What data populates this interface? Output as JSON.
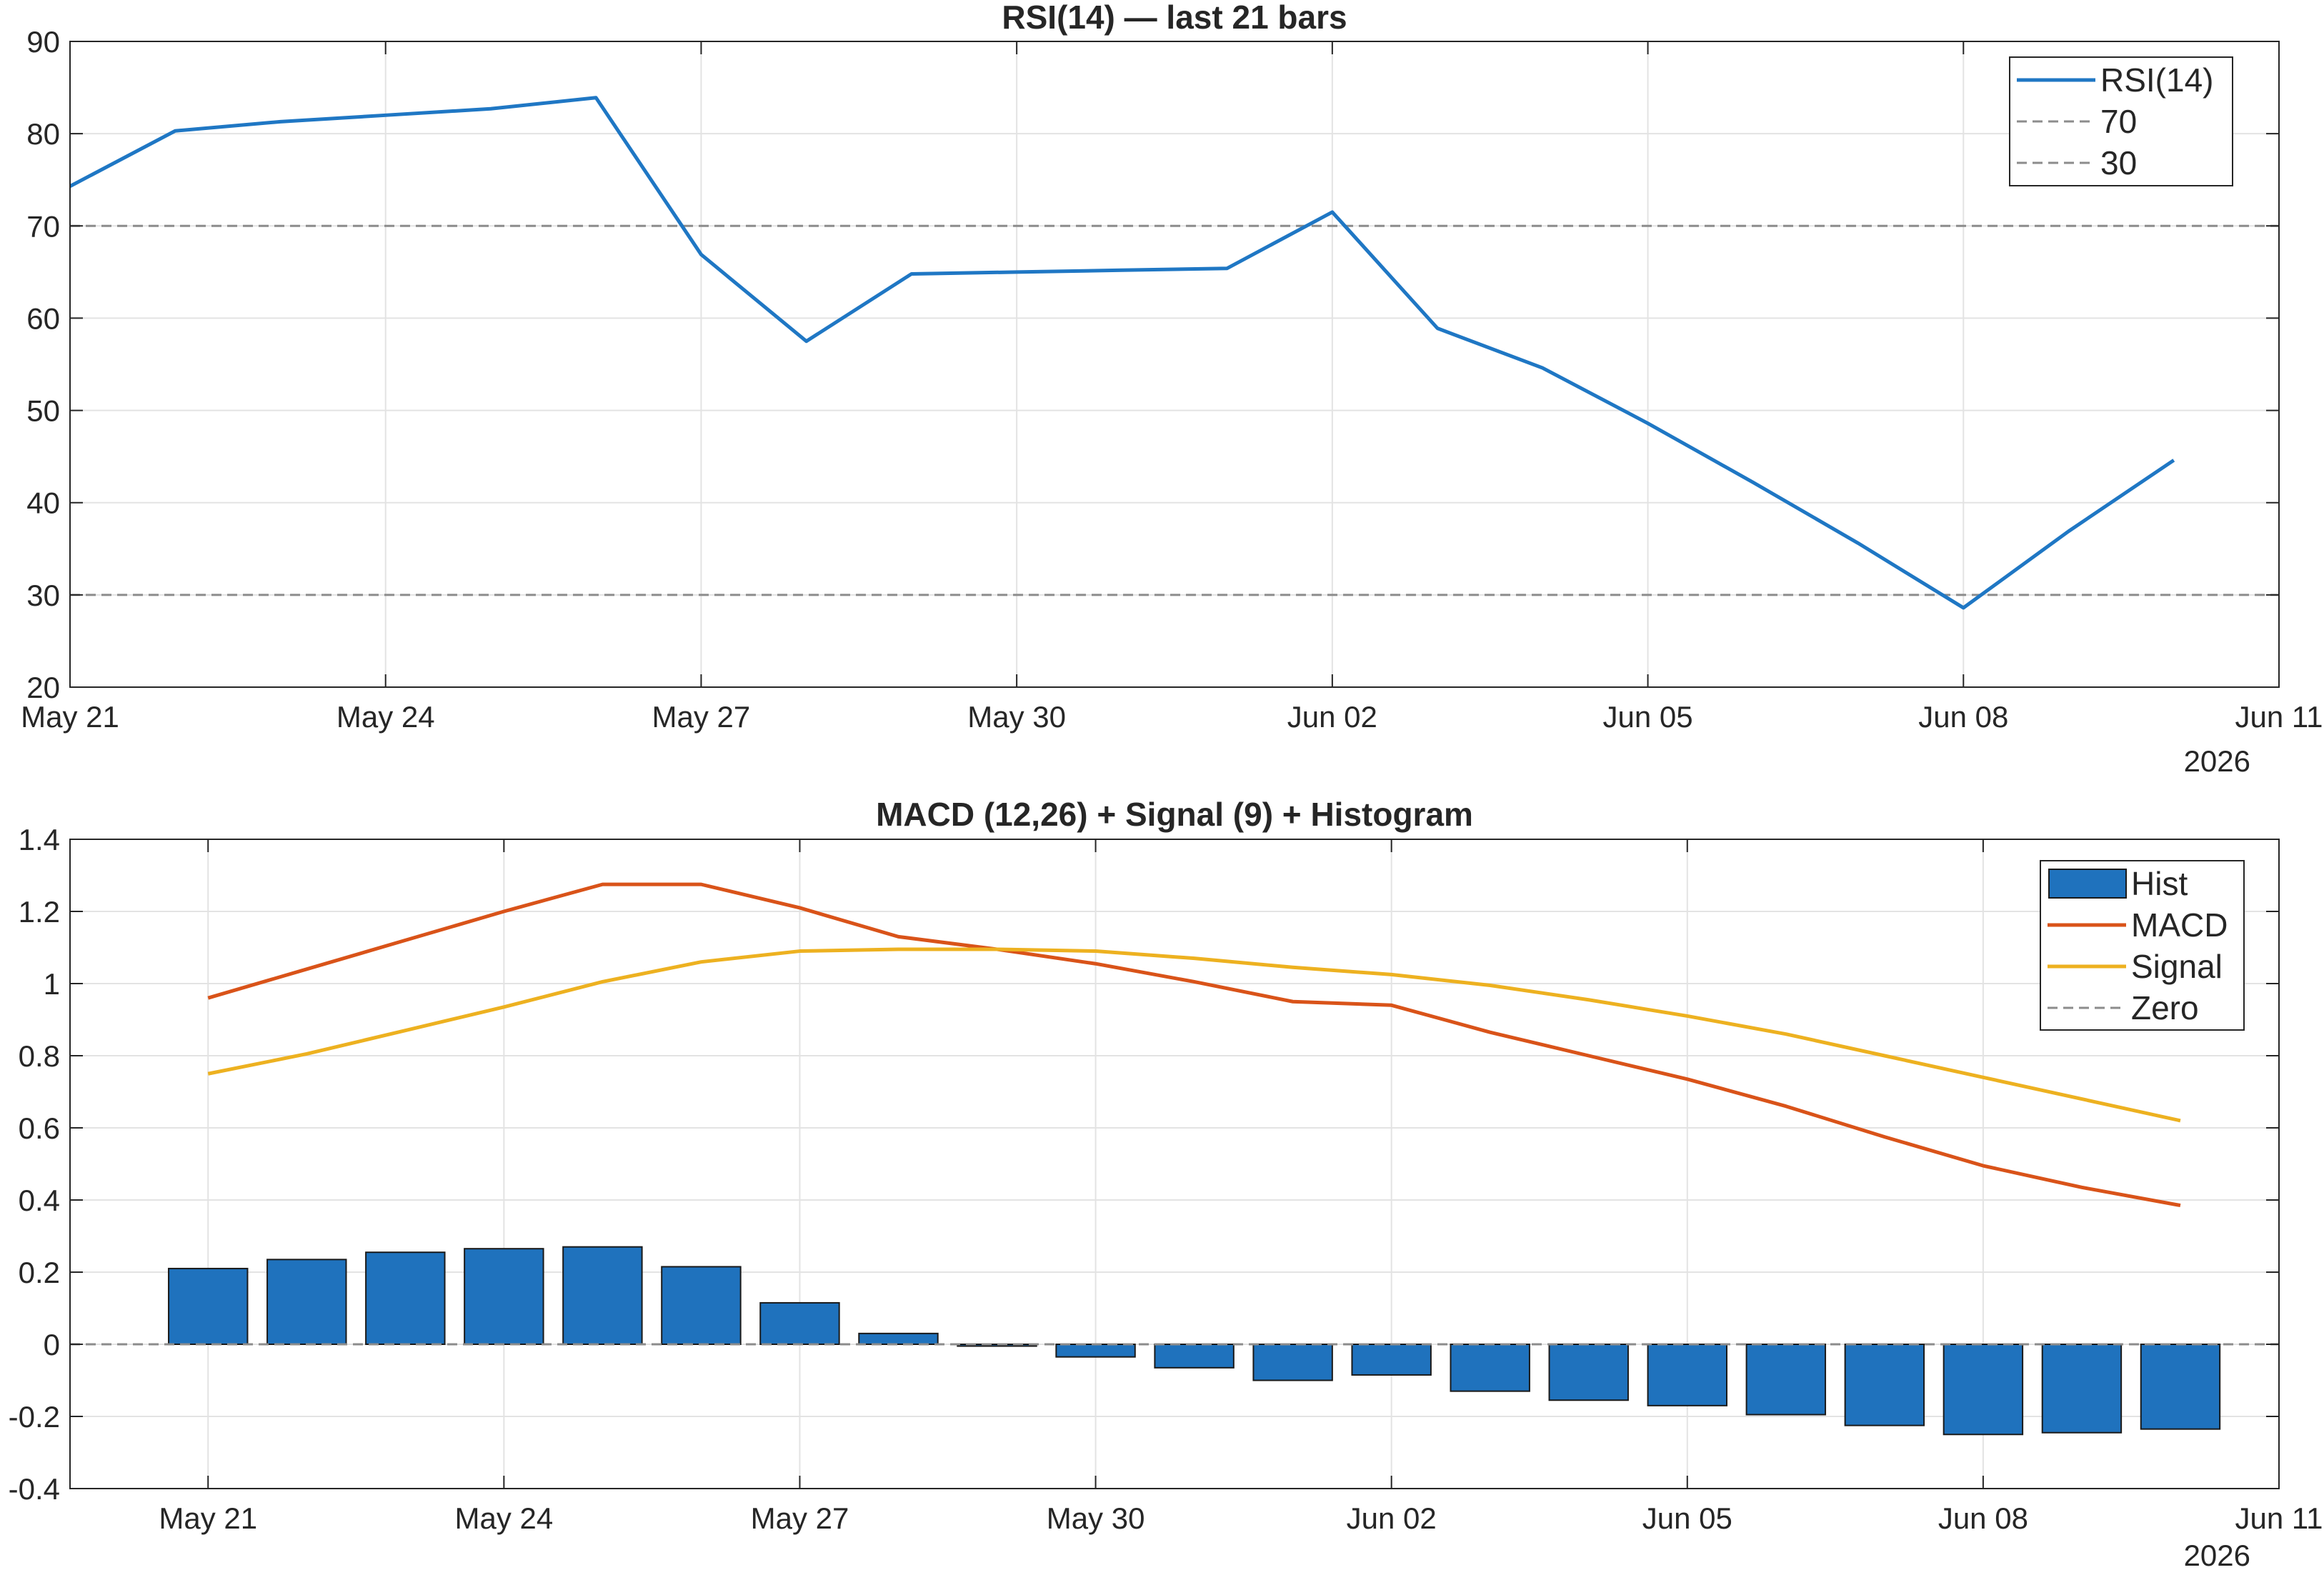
{
  "colors": {
    "rsi": "#1f77c4",
    "hist": "#1f72bd",
    "macd": "#d95319",
    "signal": "#edb120",
    "ref_line": "#8c8c8c",
    "grid": "#e3e3e3",
    "axis": "#262626"
  },
  "chart_data": [
    {
      "type": "line",
      "title": "RSI(14) — last 21 bars",
      "x": [
        "2026-05-21",
        "2026-05-22",
        "2026-05-23",
        "2026-05-24",
        "2026-05-25",
        "2026-05-26",
        "2026-05-27",
        "2026-05-28",
        "2026-05-29",
        "2026-05-30",
        "2026-05-31",
        "2026-06-01",
        "2026-06-02",
        "2026-06-03",
        "2026-06-04",
        "2026-06-05",
        "2026-06-06",
        "2026-06-07",
        "2026-06-08",
        "2026-06-09",
        "2026-06-10"
      ],
      "series": [
        {
          "name": "RSI(14)",
          "values": [
            74.3,
            80.3,
            81.3,
            82.0,
            82.7,
            83.9,
            66.9,
            57.5,
            64.8,
            65.0,
            65.2,
            65.4,
            71.5,
            58.9,
            54.6,
            48.6,
            42.2,
            35.6,
            28.6,
            36.9,
            44.6
          ]
        }
      ],
      "reference_lines": [
        {
          "name": "70",
          "value": 70
        },
        {
          "name": "30",
          "value": 30
        }
      ],
      "x_ticks": [
        "May 21",
        "May 24",
        "May 27",
        "May 30",
        "Jun 02",
        "Jun 05",
        "Jun 08",
        "Jun 11"
      ],
      "x_year_label": "2026",
      "y_ticks": [
        "20",
        "30",
        "40",
        "50",
        "60",
        "70",
        "80",
        "90"
      ],
      "xlim": [
        "2026-05-21",
        "2026-06-11"
      ],
      "ylim": [
        20,
        90
      ],
      "grid": true,
      "legend": {
        "placement": "top-right",
        "entries": [
          "RSI(14)",
          "70",
          "30"
        ]
      }
    },
    {
      "type": "bar+line",
      "title": "MACD (12,26) + Signal (9) + Histogram",
      "x": [
        "2026-05-21",
        "2026-05-22",
        "2026-05-23",
        "2026-05-24",
        "2026-05-25",
        "2026-05-26",
        "2026-05-27",
        "2026-05-28",
        "2026-05-29",
        "2026-05-30",
        "2026-05-31",
        "2026-06-01",
        "2026-06-02",
        "2026-06-03",
        "2026-06-04",
        "2026-06-05",
        "2026-06-06",
        "2026-06-07",
        "2026-06-08",
        "2026-06-09",
        "2026-06-10"
      ],
      "series": [
        {
          "name": "Hist",
          "kind": "bar",
          "values": [
            0.21,
            0.235,
            0.255,
            0.265,
            0.27,
            0.215,
            0.115,
            0.03,
            -0.005,
            -0.035,
            -0.065,
            -0.1,
            -0.085,
            -0.13,
            -0.155,
            -0.17,
            -0.195,
            -0.225,
            -0.25,
            -0.245,
            -0.235
          ]
        },
        {
          "name": "MACD",
          "kind": "line",
          "values": [
            0.96,
            1.04,
            1.12,
            1.2,
            1.275,
            1.275,
            1.21,
            1.13,
            1.095,
            1.055,
            1.005,
            0.95,
            0.94,
            0.865,
            0.8,
            0.735,
            0.66,
            0.575,
            0.495,
            0.435,
            0.385
          ]
        },
        {
          "name": "Signal",
          "kind": "line",
          "values": [
            0.75,
            0.805,
            0.87,
            0.935,
            1.005,
            1.06,
            1.09,
            1.095,
            1.095,
            1.09,
            1.07,
            1.045,
            1.025,
            0.995,
            0.955,
            0.91,
            0.86,
            0.8,
            0.74,
            0.68,
            0.62
          ]
        },
        {
          "name": "Zero",
          "kind": "reference",
          "value": 0
        }
      ],
      "x_ticks": [
        "May 21",
        "May 24",
        "May 27",
        "May 30",
        "Jun 02",
        "Jun 05",
        "Jun 08",
        "Jun 11"
      ],
      "x_year_label": "2026",
      "y_ticks": [
        "-0.4",
        "-0.2",
        "0",
        "0.2",
        "0.4",
        "0.6",
        "0.8",
        "1",
        "1.2",
        "1.4"
      ],
      "xlim": [
        "2026-05-19.6",
        "2026-06-11"
      ],
      "ylim": [
        -0.4,
        1.4
      ],
      "grid": true,
      "legend": {
        "placement": "top-right",
        "entries": [
          "Hist",
          "MACD",
          "Signal",
          "Zero"
        ]
      }
    }
  ]
}
